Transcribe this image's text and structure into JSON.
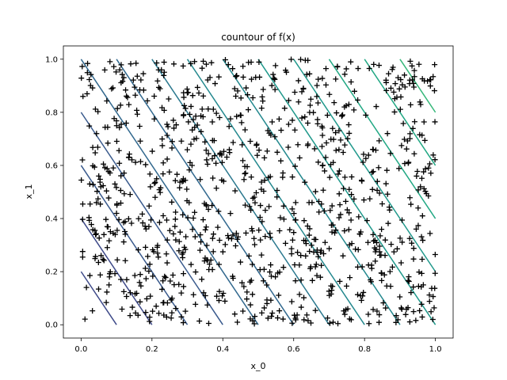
{
  "chart_data": {
    "type": "scatter",
    "title": "countour of f(x)",
    "xlabel": "x_0",
    "ylabel": "x_1",
    "xlim": [
      -0.05,
      1.05
    ],
    "ylim": [
      -0.05,
      1.05
    ],
    "x_ticks": [
      "0.0",
      "0.2",
      "0.4",
      "0.6",
      "0.8",
      "1.0"
    ],
    "y_ticks": [
      "0.0",
      "0.2",
      "0.4",
      "0.6",
      "0.8",
      "1.0"
    ],
    "grid": false,
    "marker": "+",
    "marker_color": "#000000",
    "sample_count": 1000,
    "samples_distribution": "uniform on [0,1] x [0,1]",
    "contours": {
      "function": "x_1 = -2 * x_0 + c",
      "levels": [
        0.2,
        0.4,
        0.6,
        0.8,
        1.0,
        1.2,
        1.4,
        1.6,
        1.8,
        2.0,
        2.2,
        2.4,
        2.6,
        2.8
      ],
      "colormap": [
        "#3e4a89",
        "#38598c",
        "#31688e",
        "#2a788e",
        "#23888e",
        "#1f988b",
        "#22a884",
        "#35b779"
      ]
    }
  }
}
